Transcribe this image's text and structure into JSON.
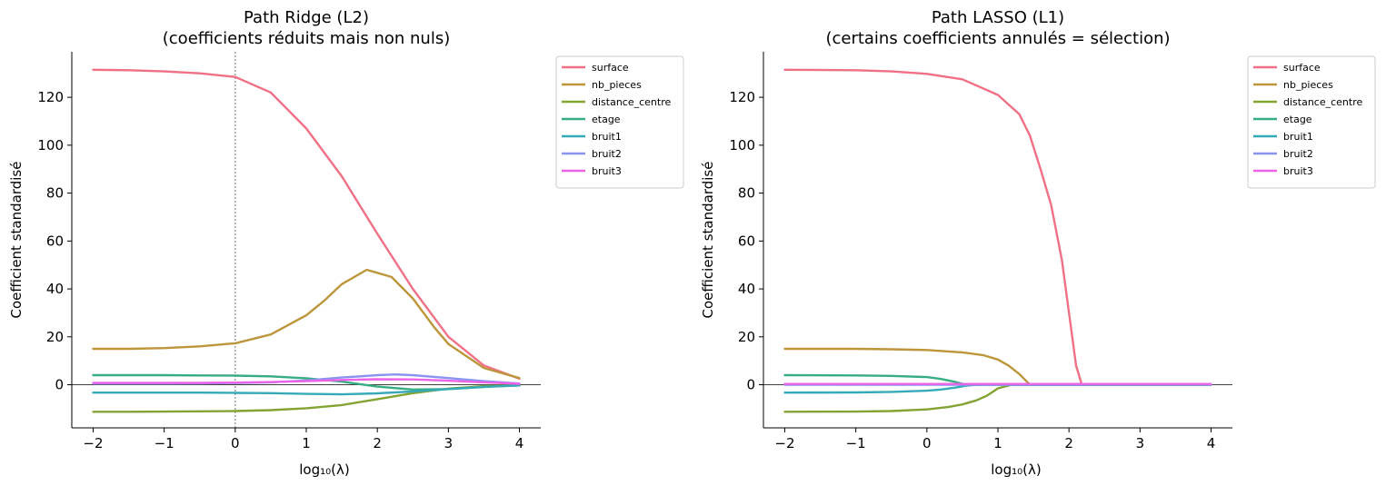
{
  "colors": {
    "surface": "#f07185",
    "nb_pieces": "#bd953a",
    "distance_centre": "#83a432",
    "etage": "#36ad82",
    "bruit1": "#37aab8",
    "bruit2": "#8a94f0",
    "bruit3": "#ec63e8"
  },
  "chart_data": [
    {
      "type": "line",
      "title_line1": "Path Ridge (L2)",
      "title_line2": "(coefficients réduits mais non nuls)",
      "xlabel": "log₁₀(λ)",
      "ylabel": "Coefficient standardisé",
      "xlim": [
        -2.3,
        4.3
      ],
      "ylim": [
        -18,
        139
      ],
      "x_ticks": [
        -2,
        -1,
        0,
        1,
        2,
        3,
        4
      ],
      "x_tick_labels": [
        "−2",
        "−1",
        "0",
        "1",
        "2",
        "3",
        "4"
      ],
      "y_ticks": [
        0,
        20,
        40,
        60,
        80,
        100,
        120
      ],
      "y_tick_labels": [
        "0",
        "20",
        "40",
        "60",
        "80",
        "100",
        "120"
      ],
      "zero_line": true,
      "vline_x": 0,
      "legend_position": "upper-right-outside",
      "series": [
        {
          "name": "surface",
          "x": [
            -2,
            -1.5,
            -1,
            -0.5,
            0,
            0.5,
            1,
            1.5,
            2,
            2.5,
            3,
            3.5,
            4
          ],
          "y": [
            131.5,
            131.3,
            130.8,
            130,
            128.5,
            122,
            107,
            87,
            63,
            40,
            20,
            8,
            2.5
          ]
        },
        {
          "name": "nb_pieces",
          "x": [
            -2,
            -1.5,
            -1,
            -0.5,
            0,
            0.5,
            1,
            1.25,
            1.5,
            1.85,
            2.2,
            2.5,
            2.8,
            3,
            3.5,
            4
          ],
          "y": [
            15,
            15,
            15.3,
            16,
            17.3,
            21,
            29,
            35,
            42,
            48,
            45,
            36,
            24,
            17,
            7,
            2.8
          ]
        },
        {
          "name": "distance_centre",
          "x": [
            -2,
            -1.5,
            -1,
            -0.5,
            0,
            0.5,
            1,
            1.5,
            2,
            2.5,
            3,
            3.5,
            4
          ],
          "y": [
            -11.3,
            -11.3,
            -11.2,
            -11.1,
            -11,
            -10.6,
            -9.8,
            -8.5,
            -6,
            -3.5,
            -1.6,
            -0.6,
            -0.2
          ]
        },
        {
          "name": "etage",
          "x": [
            -2,
            -1.5,
            -1,
            -0.5,
            0,
            0.5,
            1,
            1.5,
            2,
            2.5,
            3,
            3.5,
            4
          ],
          "y": [
            4,
            4,
            4,
            3.9,
            3.8,
            3.5,
            2.7,
            1.3,
            -0.8,
            -2,
            -1.8,
            -0.9,
            -0.3
          ]
        },
        {
          "name": "bruit1",
          "x": [
            -2,
            -1.5,
            -1,
            -0.5,
            0,
            0.5,
            1,
            1.5,
            2,
            2.5,
            3,
            3.5,
            4
          ],
          "y": [
            -3.3,
            -3.3,
            -3.3,
            -3.3,
            -3.4,
            -3.5,
            -3.8,
            -4,
            -3.6,
            -2.8,
            -1.8,
            -0.9,
            -0.3
          ]
        },
        {
          "name": "bruit2",
          "x": [
            -2,
            -1.5,
            -1,
            -0.5,
            0,
            0.5,
            1,
            1.5,
            2,
            2.25,
            2.5,
            3,
            3.5,
            4
          ],
          "y": [
            0.5,
            0.5,
            0.5,
            0.6,
            0.7,
            1,
            1.8,
            3,
            4,
            4.3,
            4,
            2.8,
            1.5,
            0.5
          ]
        },
        {
          "name": "bruit3",
          "x": [
            -2,
            -1.5,
            -1,
            -0.5,
            0,
            0.5,
            1,
            1.5,
            2,
            2.5,
            3,
            3.5,
            4
          ],
          "y": [
            0.8,
            0.8,
            0.8,
            0.8,
            0.9,
            1.1,
            1.5,
            2,
            2.3,
            2.2,
            1.7,
            1,
            0.4
          ]
        }
      ]
    },
    {
      "type": "line",
      "title_line1": "Path LASSO (L1)",
      "title_line2": "(certains coefficients annulés = sélection)",
      "xlabel": "log₁₀(λ)",
      "ylabel": "Coefficient standardisé",
      "xlim": [
        -2.3,
        4.3
      ],
      "ylim": [
        -18,
        139
      ],
      "x_ticks": [
        -2,
        -1,
        0,
        1,
        2,
        3,
        4
      ],
      "x_tick_labels": [
        "−2",
        "−1",
        "0",
        "1",
        "2",
        "3",
        "4"
      ],
      "y_ticks": [
        0,
        20,
        40,
        60,
        80,
        100,
        120
      ],
      "y_tick_labels": [
        "0",
        "20",
        "40",
        "60",
        "80",
        "100",
        "120"
      ],
      "zero_line": true,
      "vline_x": null,
      "legend_position": "upper-right-outside",
      "series": [
        {
          "name": "surface",
          "x": [
            -2,
            -1,
            -0.5,
            0,
            0.5,
            1,
            1.3,
            1.45,
            1.6,
            1.75,
            1.9,
            2.0,
            2.1,
            2.18,
            2.5,
            3,
            3.5,
            4
          ],
          "y": [
            131.5,
            131.3,
            130.8,
            129.8,
            127.5,
            121,
            113,
            104,
            90,
            75,
            52,
            30,
            8,
            0,
            0,
            0,
            0,
            0
          ]
        },
        {
          "name": "nb_pieces",
          "x": [
            -2,
            -1,
            -0.5,
            0,
            0.5,
            0.8,
            1,
            1.15,
            1.3,
            1.45,
            2,
            3,
            4
          ],
          "y": [
            15,
            15,
            14.8,
            14.5,
            13.5,
            12.3,
            10.5,
            8,
            4.5,
            0,
            0,
            0,
            0
          ]
        },
        {
          "name": "distance_centre",
          "x": [
            -2,
            -1,
            -0.5,
            0,
            0.3,
            0.5,
            0.7,
            0.85,
            1,
            1.2,
            2,
            3,
            4
          ],
          "y": [
            -11.3,
            -11.2,
            -11,
            -10.3,
            -9.3,
            -8.2,
            -6.5,
            -4.5,
            -1.5,
            0,
            0,
            0,
            0
          ]
        },
        {
          "name": "etage",
          "x": [
            -2,
            -1,
            -0.5,
            0,
            0.2,
            0.4,
            0.5,
            0.6,
            1,
            2,
            3,
            4
          ],
          "y": [
            4,
            3.9,
            3.7,
            3.2,
            2.4,
            1.2,
            0.4,
            0,
            0,
            0,
            0,
            0
          ]
        },
        {
          "name": "bruit1",
          "x": [
            -2,
            -1,
            -0.5,
            0,
            0.2,
            0.4,
            0.55,
            0.7,
            1,
            2,
            3,
            4
          ],
          "y": [
            -3.3,
            -3.2,
            -3,
            -2.5,
            -2,
            -1.2,
            -0.4,
            0,
            0,
            0,
            0,
            0
          ]
        },
        {
          "name": "bruit2",
          "x": [
            -2,
            -1,
            0,
            1,
            2,
            3,
            4
          ],
          "y": [
            0,
            0,
            0,
            0,
            0,
            0,
            0
          ]
        },
        {
          "name": "bruit3",
          "x": [
            -2,
            -1,
            0,
            1,
            2,
            3,
            4
          ],
          "y": [
            0.3,
            0.3,
            0.3,
            0.3,
            0.3,
            0.3,
            0.3
          ]
        }
      ]
    }
  ]
}
